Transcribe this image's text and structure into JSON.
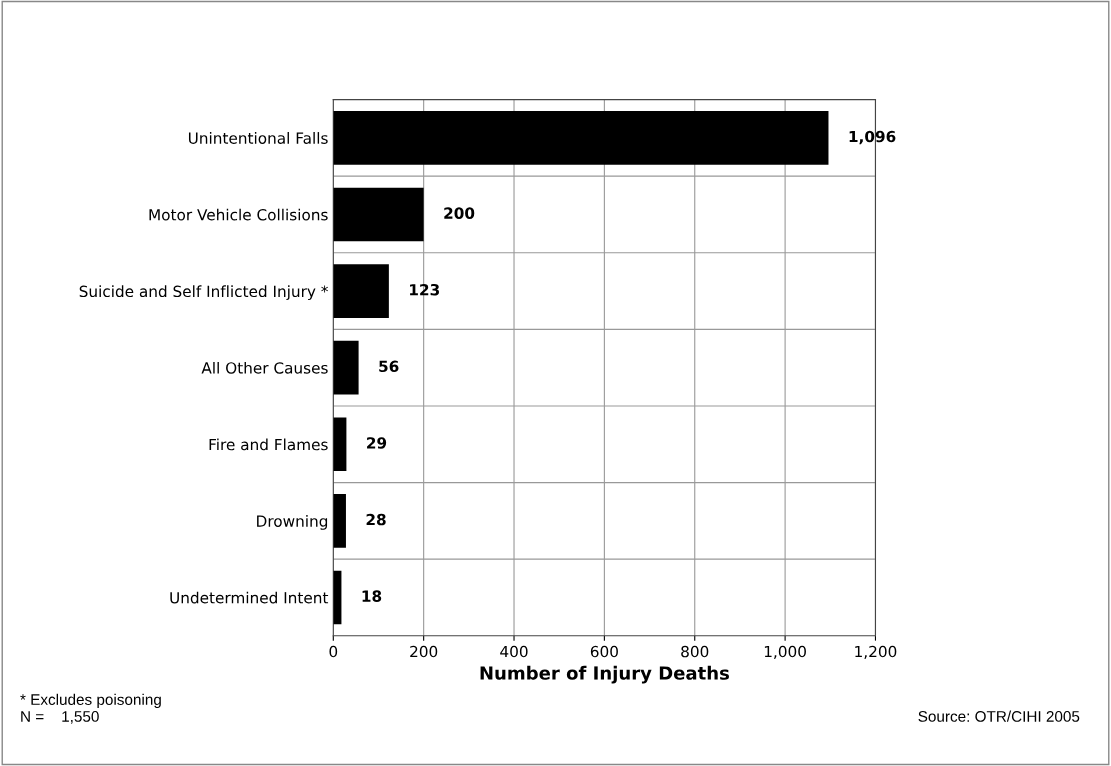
{
  "chart_data": {
    "type": "bar",
    "orientation": "horizontal",
    "xlabel": "Number of Injury Deaths",
    "categories": [
      "Unintentional Falls",
      "Motor Vehicle Collisions",
      "Suicide and Self Inflicted Injury *",
      "All Other Causes",
      "Fire and Flames",
      "Drowning",
      "Undetermined Intent"
    ],
    "values": [
      1096,
      200,
      123,
      56,
      29,
      28,
      18
    ],
    "value_labels": [
      "1,096",
      "200",
      "123",
      "56",
      "29",
      "28",
      "18"
    ],
    "color": "#000000",
    "xlim": [
      0,
      1200
    ],
    "xticks": [
      0,
      200,
      400,
      600,
      800,
      {
        "value": 1000,
        "label": "1,000"
      },
      {
        "value": 1200,
        "label": "1,200"
      }
    ],
    "grid": true,
    "legend": false,
    "annotations": [
      "* Excludes poisoning",
      "N =    1,550",
      "Source: OTR/CIHI 2005"
    ]
  }
}
